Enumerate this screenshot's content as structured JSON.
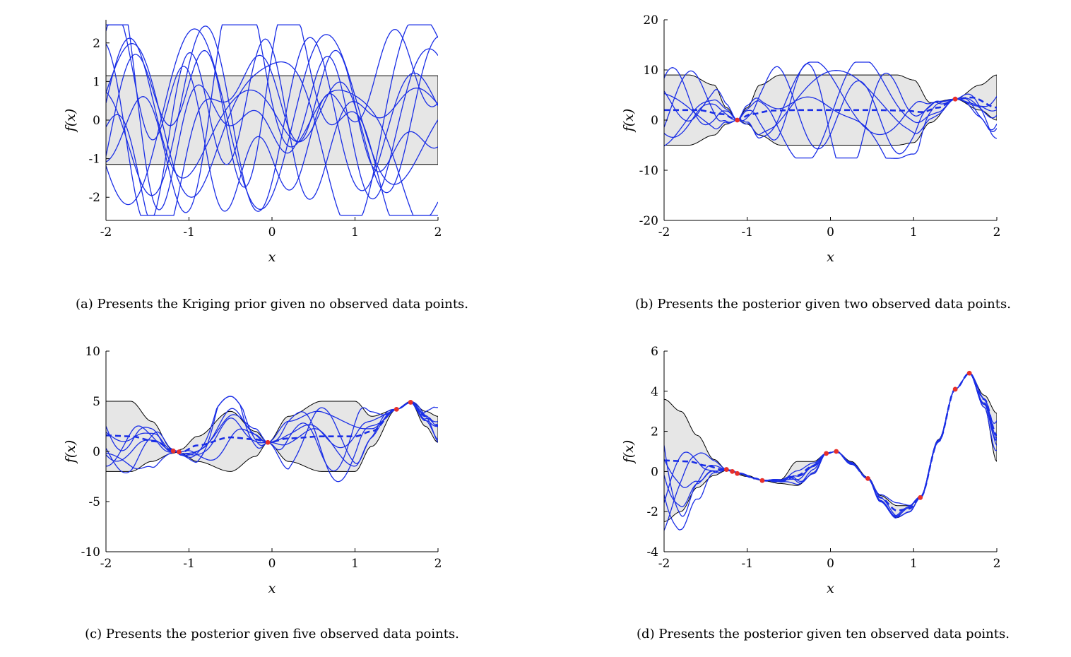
{
  "colors": {
    "band": "#e6e6e6",
    "band_edge": "#000000",
    "samples": "#1a2ee6",
    "mean": "#1a2ee6",
    "observed": "#e8302a"
  },
  "captions": [
    "(a) Presents the Kriging prior given no observed data points.",
    "(b) Presents the posterior given two observed data points.",
    "(c) Presents the posterior given five observed data points.",
    "(d) Presents the posterior given ten observed data points."
  ],
  "chart_data": [
    {
      "type": "line",
      "xlabel": "x",
      "ylabel": "f(x)",
      "xlim": [
        -2,
        2
      ],
      "ylim": [
        -2.6,
        2.6
      ],
      "xticks": [
        "-2",
        "-1",
        "0",
        "1",
        "2"
      ],
      "yticks": [
        {
          "v": 2,
          "t": "2"
        },
        {
          "v": 1,
          "t": "1"
        },
        {
          "v": 0,
          "t": "0"
        },
        {
          "v": -1,
          "t": "-1"
        },
        {
          "v": -2,
          "t": "-2"
        }
      ],
      "band": {
        "x": [
          -2,
          2
        ],
        "upper": [
          1.15,
          1.15
        ],
        "lower": [
          -1.15,
          -1.15
        ]
      },
      "mean": null,
      "observed": [],
      "sample_count": 10
    },
    {
      "type": "line",
      "xlabel": "x",
      "ylabel": "f(x)",
      "xlim": [
        -2,
        2
      ],
      "ylim": [
        -20,
        20
      ],
      "xticks": [
        "-2",
        "-1",
        "0",
        "1",
        "2"
      ],
      "yticks": [
        {
          "v": 20,
          "t": "20"
        },
        {
          "v": 10,
          "t": "10"
        },
        {
          "v": 0,
          "t": "0"
        },
        {
          "v": -10,
          "t": "-10"
        },
        {
          "v": -20,
          "t": "-20"
        }
      ],
      "band": {
        "x": [
          -2,
          -1.7,
          -1.4,
          -1.25,
          -1.12,
          -1.0,
          -0.85,
          -0.6,
          0.0,
          0.8,
          1.0,
          1.2,
          1.5,
          1.8,
          2.0
        ],
        "upper": [
          9,
          9,
          7,
          2.5,
          0,
          2.5,
          7,
          9,
          9,
          9,
          8,
          3.5,
          4.2,
          7,
          9
        ],
        "lower": [
          -5,
          -5,
          -3,
          -0.8,
          0,
          -0.8,
          -3,
          -5,
          -5,
          -5,
          -4.5,
          -0.5,
          4.2,
          2,
          0
        ]
      },
      "mean": {
        "x": [
          -2,
          -1.6,
          -1.3,
          -1.12,
          -0.95,
          -0.7,
          -0.4,
          0.0,
          0.5,
          0.9,
          1.1,
          1.3,
          1.5,
          1.7,
          2.0
        ],
        "y": [
          2,
          2,
          1.2,
          0,
          1.2,
          1.9,
          2,
          2,
          2,
          1.9,
          1.6,
          2.5,
          4.2,
          4.5,
          2.5
        ]
      },
      "observed": [
        {
          "x": -1.12,
          "y": 0
        },
        {
          "x": 1.5,
          "y": 4.2
        }
      ],
      "sample_count": 6
    },
    {
      "type": "line",
      "xlabel": "x",
      "ylabel": "f(x)",
      "xlim": [
        -2,
        2
      ],
      "ylim": [
        -10,
        10
      ],
      "xticks": [
        "-2",
        "-1",
        "0",
        "1",
        "2"
      ],
      "yticks": [
        {
          "v": 10,
          "t": "10"
        },
        {
          "v": 5,
          "t": "5"
        },
        {
          "v": 0,
          "t": "0"
        },
        {
          "v": -5,
          "t": "-5"
        },
        {
          "v": -10,
          "t": "-10"
        }
      ],
      "band": {
        "x": [
          -2,
          -1.7,
          -1.45,
          -1.2,
          -1.15,
          -1.1,
          -0.9,
          -0.5,
          -0.2,
          -0.05,
          0.2,
          0.6,
          1.0,
          1.2,
          1.5,
          1.67,
          1.85,
          2.0
        ],
        "upper": [
          5,
          5,
          3,
          0.2,
          0,
          0.2,
          1.5,
          4,
          2,
          0.9,
          3.5,
          5,
          5,
          3.5,
          4.2,
          5.0,
          4.0,
          3.5
        ],
        "lower": [
          -2,
          -2,
          -1,
          -0.2,
          -0.1,
          -0.2,
          -1,
          -2,
          -0.5,
          0.9,
          -1,
          -2,
          -2,
          0.5,
          4.2,
          4.9,
          2.5,
          0.9
        ]
      },
      "mean": {
        "x": [
          -2,
          -1.7,
          -1.4,
          -1.2,
          -1.1,
          -0.9,
          -0.5,
          -0.2,
          -0.05,
          0.2,
          0.6,
          1.0,
          1.2,
          1.5,
          1.67,
          1.85,
          2.0
        ],
        "y": [
          1.6,
          1.5,
          1.0,
          0.1,
          -0.1,
          0.6,
          1.4,
          1.2,
          0.9,
          1.3,
          1.5,
          1.5,
          2.0,
          4.2,
          4.9,
          3.5,
          2.6
        ]
      },
      "observed": [
        {
          "x": -1.19,
          "y": 0.05
        },
        {
          "x": -1.12,
          "y": -0.05
        },
        {
          "x": -0.05,
          "y": 0.9
        },
        {
          "x": 1.5,
          "y": 4.2
        },
        {
          "x": 1.67,
          "y": 4.9
        }
      ],
      "sample_count": 6
    },
    {
      "type": "line",
      "xlabel": "x",
      "ylabel": "f(x)",
      "xlim": [
        -2,
        2
      ],
      "ylim": [
        -4,
        6
      ],
      "xticks": [
        "-2",
        "-1",
        "0",
        "1",
        "2"
      ],
      "yticks": [
        {
          "v": 6,
          "t": "6"
        },
        {
          "v": 4,
          "t": "4"
        },
        {
          "v": 2,
          "t": "2"
        },
        {
          "v": 0,
          "t": "0"
        },
        {
          "v": -2,
          "t": "-2"
        },
        {
          "v": -4,
          "t": "-4"
        }
      ],
      "band": {
        "x": [
          -2,
          -1.8,
          -1.6,
          -1.4,
          -1.25,
          -1.0,
          -0.82,
          -0.6,
          -0.4,
          -0.2,
          -0.05,
          0.07,
          0.25,
          0.45,
          0.6,
          0.8,
          0.95,
          1.08,
          1.3,
          1.5,
          1.67,
          1.85,
          2.0
        ],
        "upper": [
          3.6,
          3.0,
          1.8,
          0.6,
          0.1,
          -0.2,
          -0.45,
          -0.4,
          0.5,
          0.5,
          0.9,
          1.0,
          0.5,
          -0.3,
          -1.2,
          -1.7,
          -1.7,
          -1.25,
          1.6,
          4.1,
          4.9,
          3.8,
          2.9
        ],
        "lower": [
          -2.5,
          -2.0,
          -0.8,
          -0.2,
          0.05,
          -0.25,
          -0.45,
          -0.6,
          -0.7,
          -0.1,
          0.9,
          1.0,
          0.4,
          -0.3,
          -1.5,
          -2.3,
          -2.0,
          -1.3,
          1.5,
          4.1,
          4.9,
          3.2,
          0.5
        ]
      },
      "mean": {
        "x": [
          -2,
          -1.7,
          -1.5,
          -1.3,
          -1.2,
          -1.1,
          -0.9,
          -0.82,
          -0.6,
          -0.4,
          -0.2,
          -0.05,
          0.07,
          0.25,
          0.45,
          0.6,
          0.8,
          0.95,
          1.08,
          1.3,
          1.5,
          1.67,
          1.85,
          2.0
        ],
        "y": [
          0.55,
          0.5,
          0.3,
          0.1,
          0.05,
          -0.1,
          -0.35,
          -0.45,
          -0.5,
          -0.2,
          0.3,
          0.9,
          1.0,
          0.4,
          -0.35,
          -1.3,
          -1.95,
          -1.85,
          -1.3,
          1.5,
          4.1,
          4.9,
          3.6,
          1.8
        ]
      },
      "observed": [
        {
          "x": -1.25,
          "y": 0.1
        },
        {
          "x": -1.18,
          "y": 0.0
        },
        {
          "x": -1.12,
          "y": -0.1
        },
        {
          "x": -0.82,
          "y": -0.45
        },
        {
          "x": -0.05,
          "y": 0.9
        },
        {
          "x": 0.07,
          "y": 1.0
        },
        {
          "x": 0.45,
          "y": -0.35
        },
        {
          "x": 1.08,
          "y": -1.3
        },
        {
          "x": 1.5,
          "y": 4.1
        },
        {
          "x": 1.67,
          "y": 4.9
        }
      ],
      "sample_count": 6
    }
  ]
}
